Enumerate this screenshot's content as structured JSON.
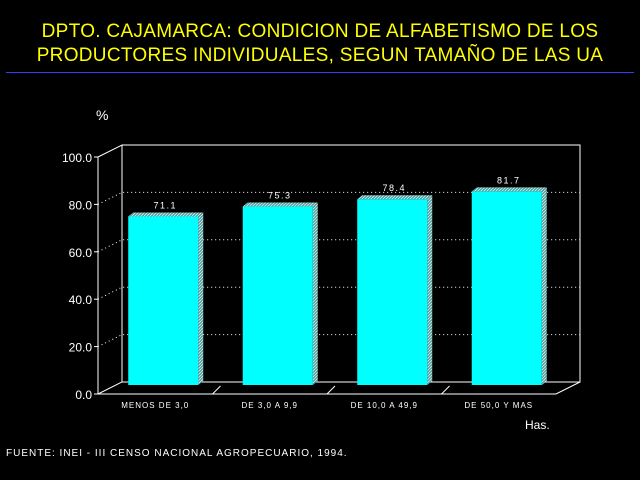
{
  "header": {
    "title_line1": "DPTO. CAJAMARCA: CONDICION DE ALFABETISMO DE LOS",
    "title_line2": "PRODUCTORES INDIVIDUALES, SEGUN TAMAÑO DE LAS UA"
  },
  "footer": {
    "source": "FUENTE: INEI - III CENSO NACIONAL AGROPECUARIO, 1994."
  },
  "colors": {
    "background": "#000000",
    "title": "#ffff00",
    "bar_face": "#00ffff",
    "bar_side": "#5aa6a6",
    "axis": "#ffffff"
  },
  "chart_data": {
    "type": "bar",
    "title": "DPTO. CAJAMARCA: CONDICION DE ALFABETISMO DE LOS PRODUCTORES INDIVIDUALES, SEGUN TAMAÑO DE LAS UA",
    "categories": [
      "MENOS DE 3,0",
      "DE 3,0 A 9,9",
      "DE 10,0 A 49,9",
      "DE 50,0 Y MAS"
    ],
    "values": [
      71.1,
      75.3,
      78.4,
      81.7
    ],
    "value_labels": [
      "71.1",
      "75.3",
      "78.4",
      "81.7"
    ],
    "xlabel": "Has.",
    "ylabel": "%",
    "ylim": [
      0,
      100
    ],
    "yticks": [
      "0.0",
      "20.0",
      "40.0",
      "60.0",
      "80.0",
      "100.0"
    ],
    "grid": "dotted horizontal",
    "style": "3d"
  }
}
